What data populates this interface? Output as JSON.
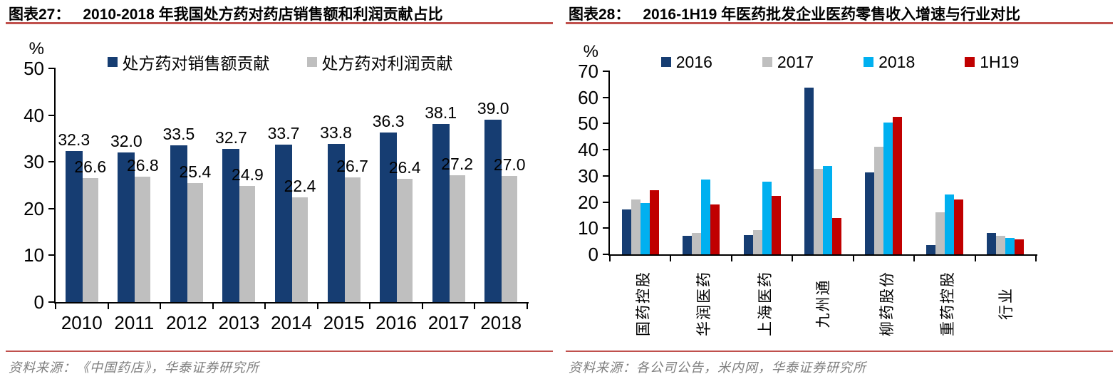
{
  "panels": [
    {
      "figure_label": "图表27：",
      "title": "2010-2018 年我国处方药对药店销售额和利润贡献占比",
      "unit": "%",
      "source": "资料来源：《中国药店》，华泰证券研究所"
    },
    {
      "figure_label": "图表28：",
      "title": "2016-1H19 年医药批发企业医药零售收入增速与行业对比",
      "unit": "%",
      "source": "资料来源：各公司公告，米内网，华泰证券研究所"
    }
  ],
  "colors": {
    "navy": "#163D72",
    "gray": "#BFBFBF",
    "cyan": "#00B0F0",
    "dark_red": "#C00000",
    "rule_red": "#C0504D",
    "source_text": "#7F7F7F",
    "axis": "#000000"
  },
  "chart_data": [
    {
      "type": "bar",
      "title": "2010-2018 年我国处方药对药店销售额和利润贡献占比",
      "categories": [
        "2010",
        "2011",
        "2012",
        "2013",
        "2014",
        "2015",
        "2016",
        "2017",
        "2018"
      ],
      "series": [
        {
          "name": "处方药对销售额贡献",
          "color": "#163D72",
          "values": [
            32.3,
            32.0,
            33.5,
            32.7,
            33.7,
            33.8,
            36.3,
            38.1,
            39.0
          ]
        },
        {
          "name": "处方药对利润贡献",
          "color": "#BFBFBF",
          "values": [
            26.6,
            26.8,
            25.4,
            24.9,
            22.4,
            26.7,
            26.4,
            27.2,
            27.0
          ]
        }
      ],
      "xlabel": "",
      "ylabel": "%",
      "ylim": [
        0,
        50
      ],
      "yticks": [
        0,
        10,
        20,
        30,
        40,
        50
      ],
      "grid": false,
      "data_labels": true,
      "legend_position": "top"
    },
    {
      "type": "bar",
      "title": "2016-1H19 年医药批发企业医药零售收入增速与行业对比",
      "categories": [
        "国药控股",
        "华润医药",
        "上海医药",
        "九州通",
        "柳药股份",
        "重药控股",
        "行业"
      ],
      "series": [
        {
          "name": "2016",
          "color": "#163D72",
          "values": [
            17.1,
            7.0,
            7.3,
            63.6,
            31.4,
            3.6,
            8.1
          ]
        },
        {
          "name": "2017",
          "color": "#BFBFBF",
          "values": [
            21.1,
            8.2,
            9.2,
            32.7,
            41.0,
            16.0,
            7.2
          ]
        },
        {
          "name": "2018",
          "color": "#00B0F0",
          "values": [
            19.5,
            28.5,
            27.7,
            33.8,
            50.5,
            23.0,
            6.3
          ]
        },
        {
          "name": "1H19",
          "color": "#C00000",
          "values": [
            24.5,
            19.1,
            22.4,
            13.9,
            52.6,
            21.0,
            5.6
          ]
        }
      ],
      "xlabel": "",
      "ylabel": "%",
      "ylim": [
        0,
        70
      ],
      "yticks": [
        0,
        10,
        20,
        30,
        40,
        50,
        60,
        70
      ],
      "grid": false,
      "data_labels": false,
      "rotated_x_labels": true,
      "legend_position": "top"
    }
  ]
}
